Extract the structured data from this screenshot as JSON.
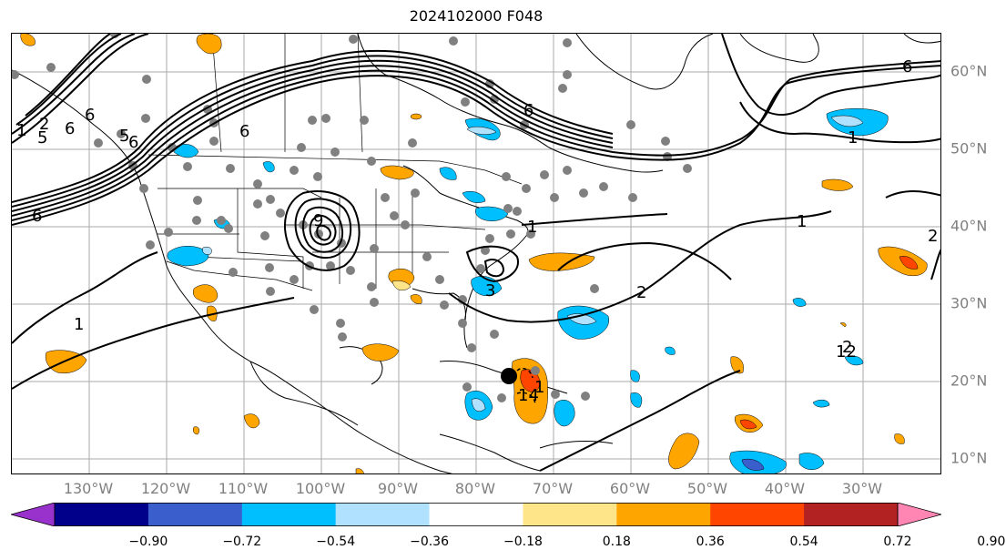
{
  "title": "2024102000 F048",
  "lon_labels": [
    "130°W",
    "120°W",
    "110°W",
    "100°W",
    "90°W",
    "80°W",
    "70°W",
    "60°W",
    "50°W",
    "40°W",
    "30°W"
  ],
  "lat_labels": [
    "60°N",
    "50°N",
    "40°N",
    "30°N",
    "20°N",
    "10°N"
  ],
  "colorbar": {
    "ticks": [
      "−0.90",
      "−0.72",
      "−0.54",
      "−0.36",
      "−0.18",
      "0.18",
      "0.36",
      "0.54",
      "0.72",
      "0.90"
    ],
    "colors": [
      "#9932cc",
      "#00008b",
      "#3a5fcd",
      "#00bfff",
      "#b0e2ff",
      "#ffffff",
      "#ffe58a",
      "#ffa500",
      "#ff4500",
      "#b22222",
      "#ff85b2"
    ]
  },
  "contour_labels": [
    "6",
    "6",
    "6",
    "6",
    "6",
    "6",
    "6",
    "2",
    "2",
    "2",
    "2",
    "1",
    "1",
    "1",
    "1",
    "1",
    "1",
    "5",
    "5",
    "3",
    "9",
    "12",
    "14"
  ]
}
